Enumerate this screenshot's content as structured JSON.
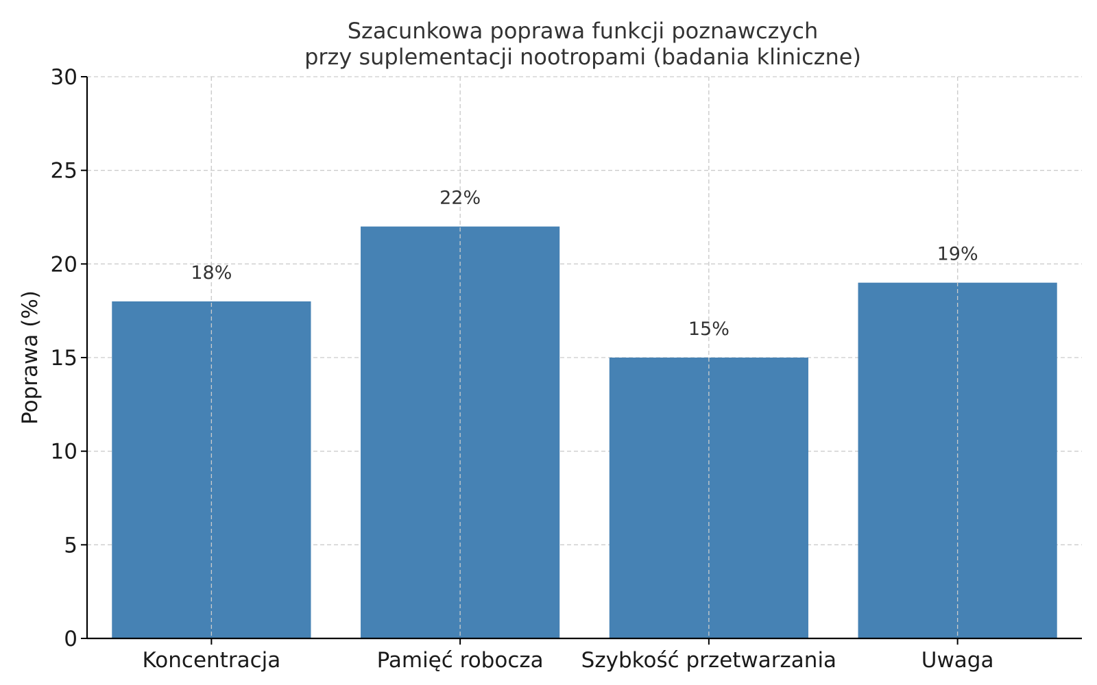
{
  "chart_data": {
    "type": "bar",
    "title": [
      "Szacunkowa poprawa funkcji poznawczych",
      "przy suplementacji nootropami (badania kliniczne)"
    ],
    "xlabel": "",
    "ylabel": "Poprawa (%)",
    "categories": [
      "Koncentracja",
      "Pamięć robocza",
      "Szybkość przetwarzania",
      "Uwaga"
    ],
    "values": [
      18,
      22,
      15,
      19
    ],
    "value_labels": [
      "18%",
      "22%",
      "15%",
      "19%"
    ],
    "ylim": [
      0,
      30
    ],
    "yticks": [
      0,
      5,
      10,
      15,
      20,
      25,
      30
    ],
    "ytick_labels": [
      "0",
      "5",
      "10",
      "15",
      "20",
      "25",
      "30"
    ],
    "grid": true,
    "bar_color": "#4682b4"
  }
}
